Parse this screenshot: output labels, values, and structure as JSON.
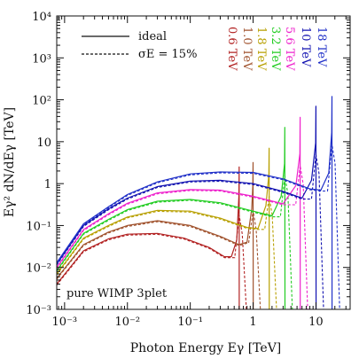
{
  "chart_data": {
    "type": "line",
    "title": "",
    "xlabel": "Photon Energy    Eγ [TeV]",
    "ylabel": "Eγ² dN/dEγ  [TeV]",
    "xscale": "log",
    "yscale": "log",
    "xlim": [
      0.00075,
      35
    ],
    "ylim": [
      0.001,
      10000
    ],
    "x_ticks": [
      {
        "value": 0.001,
        "label": "10⁻³"
      },
      {
        "value": 0.01,
        "label": "10⁻²"
      },
      {
        "value": 0.1,
        "label": "10⁻¹"
      },
      {
        "value": 1,
        "label": "1"
      },
      {
        "value": 10,
        "label": "10"
      }
    ],
    "y_ticks": [
      {
        "value": 0.001,
        "label": "10⁻³"
      },
      {
        "value": 0.01,
        "label": "10⁻²"
      },
      {
        "value": 0.1,
        "label": "10⁻¹"
      },
      {
        "value": 1,
        "label": "1"
      },
      {
        "value": 10,
        "label": "10"
      },
      {
        "value": 100,
        "label": "10²"
      },
      {
        "value": 1000,
        "label": "10³"
      },
      {
        "value": 10000,
        "label": "10⁴"
      }
    ],
    "legend": {
      "position": "top-left",
      "entries": [
        {
          "label": "ideal",
          "style": "solid"
        },
        {
          "label": "σE = 15%",
          "style": "dashed"
        }
      ]
    },
    "annotation": "pure WIMP 3plet",
    "series": [
      {
        "mass": 0.6,
        "label": "0.6 TeV",
        "color": "#b22222",
        "peak_low": 0.5,
        "peak_high": 2.5,
        "points": [
          [
            0.00075,
            0.004
          ],
          [
            0.002,
            0.025
          ],
          [
            0.005,
            0.048
          ],
          [
            0.01,
            0.062
          ],
          [
            0.03,
            0.065
          ],
          [
            0.08,
            0.05
          ],
          [
            0.2,
            0.03
          ],
          [
            0.35,
            0.018
          ],
          [
            0.45,
            0.018
          ],
          [
            0.55,
            0.045
          ]
        ]
      },
      {
        "mass": 1.0,
        "label": "1.0 TeV",
        "color": "#a0522d",
        "peak_low": 0.9,
        "peak_high": 3.2,
        "points": [
          [
            0.00075,
            0.0055
          ],
          [
            0.002,
            0.035
          ],
          [
            0.005,
            0.07
          ],
          [
            0.01,
            0.1
          ],
          [
            0.03,
            0.13
          ],
          [
            0.1,
            0.1
          ],
          [
            0.3,
            0.055
          ],
          [
            0.6,
            0.035
          ],
          [
            0.8,
            0.04
          ],
          [
            0.95,
            0.25
          ]
        ]
      },
      {
        "mass": 1.8,
        "label": "1.8 TeV",
        "color": "#b8a000",
        "peak_low": 1.65,
        "peak_high": 7,
        "points": [
          [
            0.00075,
            0.007
          ],
          [
            0.002,
            0.05
          ],
          [
            0.005,
            0.1
          ],
          [
            0.01,
            0.16
          ],
          [
            0.03,
            0.23
          ],
          [
            0.1,
            0.22
          ],
          [
            0.3,
            0.15
          ],
          [
            0.8,
            0.09
          ],
          [
            1.2,
            0.085
          ],
          [
            1.6,
            0.3
          ]
        ]
      },
      {
        "mass": 3.2,
        "label": "3.2 TeV",
        "color": "#22cc22",
        "peak_low": 3.0,
        "peak_high": 22,
        "points": [
          [
            0.00075,
            0.0085
          ],
          [
            0.002,
            0.065
          ],
          [
            0.005,
            0.14
          ],
          [
            0.01,
            0.24
          ],
          [
            0.03,
            0.38
          ],
          [
            0.1,
            0.42
          ],
          [
            0.3,
            0.35
          ],
          [
            1,
            0.22
          ],
          [
            2,
            0.17
          ],
          [
            2.8,
            0.5
          ]
        ]
      },
      {
        "mass": 5.6,
        "label": "5.6 TeV",
        "color": "#ee22cc",
        "peak_low": 5.2,
        "peak_high": 38,
        "points": [
          [
            0.00075,
            0.01
          ],
          [
            0.002,
            0.08
          ],
          [
            0.005,
            0.19
          ],
          [
            0.01,
            0.34
          ],
          [
            0.03,
            0.6
          ],
          [
            0.1,
            0.72
          ],
          [
            0.3,
            0.7
          ],
          [
            1,
            0.5
          ],
          [
            3,
            0.33
          ],
          [
            4.8,
            0.9
          ]
        ]
      },
      {
        "mass": 10,
        "label": "10 TeV",
        "color": "#1010b0",
        "peak_low": 9.3,
        "peak_high": 70,
        "points": [
          [
            0.00075,
            0.012
          ],
          [
            0.002,
            0.1
          ],
          [
            0.005,
            0.25
          ],
          [
            0.01,
            0.45
          ],
          [
            0.03,
            0.85
          ],
          [
            0.1,
            1.15
          ],
          [
            0.3,
            1.2
          ],
          [
            1,
            1.0
          ],
          [
            3,
            0.65
          ],
          [
            6,
            0.45
          ],
          [
            8.5,
            1.2
          ]
        ]
      },
      {
        "mass": 18,
        "label": "18 TeV",
        "color": "#2030c8",
        "peak_low": 16.5,
        "peak_high": 120,
        "points": [
          [
            0.00075,
            0.013
          ],
          [
            0.002,
            0.11
          ],
          [
            0.005,
            0.28
          ],
          [
            0.01,
            0.55
          ],
          [
            0.03,
            1.1
          ],
          [
            0.1,
            1.7
          ],
          [
            0.3,
            1.9
          ],
          [
            1,
            1.85
          ],
          [
            3,
            1.3
          ],
          [
            8,
            0.75
          ],
          [
            12,
            0.7
          ],
          [
            16,
            1.8
          ]
        ]
      }
    ]
  }
}
